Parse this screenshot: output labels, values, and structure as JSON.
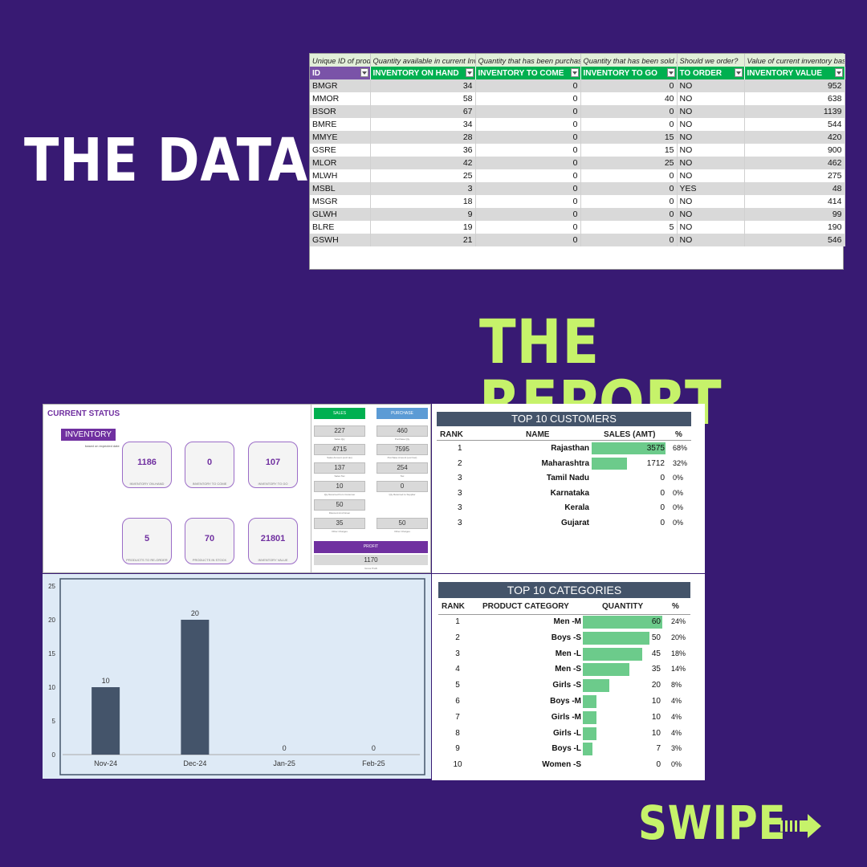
{
  "headings": {
    "data": "THE DATA",
    "report": "THE REPORT",
    "swipe": "SWIPE"
  },
  "inventory_table": {
    "descriptions": [
      "Unique ID of product",
      "Quantity available in current Inventory",
      "Quantity that has been purchased but not reached inventory yet",
      "Quantity that has been sold but not left inventory yet",
      "Should we order?",
      "Value of current inventory based on current purchase price"
    ],
    "headers": [
      "ID",
      "INVENTORY ON HAND",
      "INVENTORY TO COME",
      "INVENTORY TO GO",
      "TO ORDER",
      "INVENTORY VALUE"
    ],
    "rows": [
      [
        "BMGR",
        "34",
        "0",
        "0",
        "NO",
        "952"
      ],
      [
        "MMOR",
        "58",
        "0",
        "40",
        "NO",
        "638"
      ],
      [
        "BSOR",
        "67",
        "0",
        "0",
        "NO",
        "1139"
      ],
      [
        "BMRE",
        "34",
        "0",
        "0",
        "NO",
        "544"
      ],
      [
        "MMYE",
        "28",
        "0",
        "15",
        "NO",
        "420"
      ],
      [
        "GSRE",
        "36",
        "0",
        "15",
        "NO",
        "900"
      ],
      [
        "MLOR",
        "42",
        "0",
        "25",
        "NO",
        "462"
      ],
      [
        "MLWH",
        "25",
        "0",
        "0",
        "NO",
        "275"
      ],
      [
        "MSBL",
        "3",
        "0",
        "0",
        "YES",
        "48"
      ],
      [
        "MSGR",
        "18",
        "0",
        "0",
        "NO",
        "414"
      ],
      [
        "GLWH",
        "9",
        "0",
        "0",
        "NO",
        "99"
      ],
      [
        "BLRE",
        "19",
        "0",
        "5",
        "NO",
        "190"
      ],
      [
        "GSWH",
        "21",
        "0",
        "0",
        "NO",
        "546"
      ]
    ]
  },
  "current_status": {
    "title": "CURRENT STATUS",
    "badge": "INVENTORY",
    "note": "based on expected date",
    "kpis": [
      {
        "value": "1186",
        "label": "INVENTORY ON-HAND"
      },
      {
        "value": "0",
        "label": "INVENTORY TO COME"
      },
      {
        "value": "107",
        "label": "INVENTORY TO GO"
      },
      {
        "value": "5",
        "label": "PRODUCTS TO RE-ORDER"
      },
      {
        "value": "70",
        "label": "PRODUCTS IN STOCK"
      },
      {
        "value": "21801",
        "label": "INVENTORY VALUE"
      }
    ],
    "sales_label": "SALES",
    "purchase_label": "PURCHASE",
    "sales": [
      {
        "value": "227",
        "label": "Sales Qty"
      },
      {
        "value": "4715",
        "label": "Sales Amount (excl tax)"
      },
      {
        "value": "137",
        "label": "Sales Tax"
      },
      {
        "value": "10",
        "label": "Qty Returned from Customer"
      },
      {
        "value": "50",
        "label": "Discount And Given"
      },
      {
        "value": "35",
        "label": "Other Charges"
      }
    ],
    "purchase": [
      {
        "value": "460",
        "label": "Purchase Qty"
      },
      {
        "value": "7595",
        "label": "Purchase Amount (excl tax)"
      },
      {
        "value": "254",
        "label": "Tax"
      },
      {
        "value": "0",
        "label": "Qty Returned to Supplier"
      },
      {
        "value": "50",
        "label": "Other Charges"
      }
    ],
    "profit_label": "PROFIT",
    "profit_value": "1170",
    "profit_sub": "Gross Profit"
  },
  "customers": {
    "title": "TOP 10 CUSTOMERS",
    "headers": [
      "RANK",
      "NAME",
      "SALES (AMT)",
      "%"
    ],
    "max": 3575,
    "rows": [
      {
        "rank": "1",
        "name": "Rajasthan",
        "amt": 3575,
        "amt_text": "3575",
        "pct": "68%"
      },
      {
        "rank": "2",
        "name": "Maharashtra",
        "amt": 1712,
        "amt_text": "1712",
        "pct": "32%"
      },
      {
        "rank": "3",
        "name": "Tamil Nadu",
        "amt": 0,
        "amt_text": "0",
        "pct": "0%"
      },
      {
        "rank": "3",
        "name": "Karnataka",
        "amt": 0,
        "amt_text": "0",
        "pct": "0%"
      },
      {
        "rank": "3",
        "name": "Kerala",
        "amt": 0,
        "amt_text": "0",
        "pct": "0%"
      },
      {
        "rank": "3",
        "name": "Gujarat",
        "amt": 0,
        "amt_text": "0",
        "pct": "0%"
      }
    ]
  },
  "categories": {
    "title": "TOP 10 CATEGORIES",
    "headers": [
      "RANK",
      "PRODUCT CATEGORY",
      "QUANTITY",
      "%"
    ],
    "max": 60,
    "rows": [
      {
        "rank": "1",
        "name": "Men -M",
        "qty": 60,
        "qty_text": "60",
        "pct": "24%"
      },
      {
        "rank": "2",
        "name": "Boys -S",
        "qty": 50,
        "qty_text": "50",
        "pct": "20%"
      },
      {
        "rank": "3",
        "name": "Men -L",
        "qty": 45,
        "qty_text": "45",
        "pct": "18%"
      },
      {
        "rank": "4",
        "name": "Men -S",
        "qty": 35,
        "qty_text": "35",
        "pct": "14%"
      },
      {
        "rank": "5",
        "name": "Girls -S",
        "qty": 20,
        "qty_text": "20",
        "pct": "8%"
      },
      {
        "rank": "6",
        "name": "Boys -M",
        "qty": 10,
        "qty_text": "10",
        "pct": "4%"
      },
      {
        "rank": "7",
        "name": "Girls -M",
        "qty": 10,
        "qty_text": "10",
        "pct": "4%"
      },
      {
        "rank": "8",
        "name": "Girls -L",
        "qty": 10,
        "qty_text": "10",
        "pct": "4%"
      },
      {
        "rank": "9",
        "name": "Boys -L",
        "qty": 7,
        "qty_text": "7",
        "pct": "3%"
      },
      {
        "rank": "10",
        "name": "Women -S",
        "qty": 0,
        "qty_text": "0",
        "pct": "0%"
      }
    ]
  },
  "chart_data": {
    "type": "bar",
    "categories": [
      "Nov-24",
      "Dec-24",
      "Jan-25",
      "Feb-25"
    ],
    "values": [
      10,
      20,
      0,
      0
    ],
    "title": "",
    "xlabel": "",
    "ylabel": "",
    "ylim": [
      0,
      25
    ],
    "yticks": [
      0,
      5,
      10,
      15,
      20,
      25
    ],
    "grid": false,
    "bar_color": "#44546a",
    "background_color": "#deeaf6"
  },
  "colors": {
    "background": "#381a73",
    "accent": "#c6f26a",
    "green": "#00b050",
    "bar_green": "#6ccb8b",
    "purple": "#7030a0",
    "slate": "#44546a"
  }
}
